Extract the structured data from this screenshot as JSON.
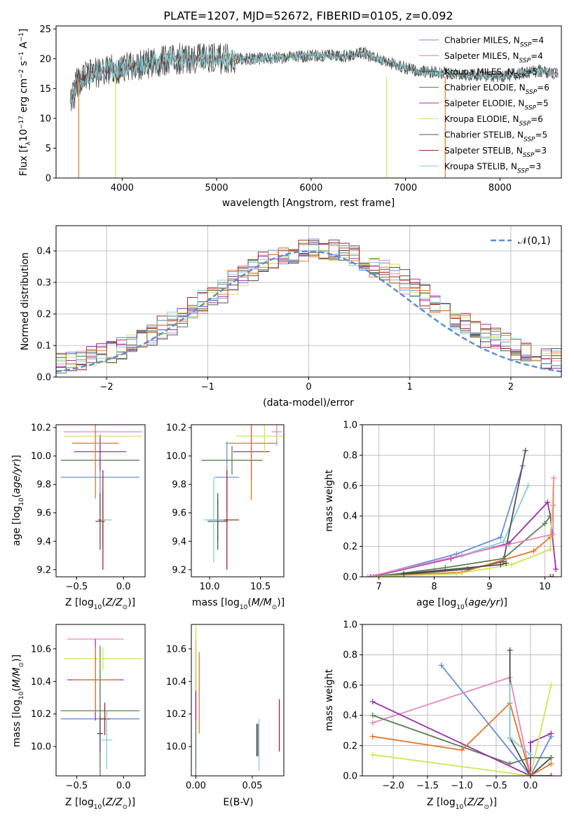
{
  "colors": {
    "series": [
      "#6a8fdb",
      "#e887bf",
      "#4a4a4a",
      "#5b7f55",
      "#9b2fae",
      "#cfe556",
      "#545454",
      "#a3282a",
      "#84d0d6"
    ],
    "orange": "#e0782a",
    "gaussian": "#5b8ed6",
    "grid": "#b0b0b0"
  },
  "chart_data": [
    {
      "id": "spectrum",
      "type": "line",
      "title": "PLATE=1207, MJD=52672, FIBERID=0105, z=0.092",
      "xlabel": "wavelength [Angstrom, rest frame]",
      "ylabel": "Flux [f_λ 10^-17 erg cm^-2 s^-1 A^-1]",
      "xlim": [
        3300,
        8650
      ],
      "ylim": [
        0,
        25.5
      ],
      "xticks": [
        4000,
        5000,
        6000,
        7000,
        8000
      ],
      "yticks": [
        0,
        5,
        10,
        15,
        20,
        25
      ],
      "grid": false,
      "legend_position": "top-right",
      "series": [
        {
          "name": "Chabrier MILES, N_SSP=4",
          "color": "#6a8fdb"
        },
        {
          "name": "Salpeter MILES, N_SSP=4",
          "color": "#e887bf"
        },
        {
          "name": "Kroupa MILES, N_SSP=5",
          "color": "#4a4a4a"
        },
        {
          "name": "Chabrier ELODIE, N_SSP=6",
          "color": "#5b7f55"
        },
        {
          "name": "Salpeter ELODIE, N_SSP=5",
          "color": "#9b2fae"
        },
        {
          "name": "Kroupa ELODIE, N_SSP=6",
          "color": "#cfe556"
        },
        {
          "name": "Chabrier STELIB, N_SSP=5",
          "color": "#545454"
        },
        {
          "name": "Salpeter STELIB, N_SSP=3",
          "color": "#a3282a"
        },
        {
          "name": "Kroupa STELIB, N_SSP=3",
          "color": "#84d0d6"
        }
      ],
      "continuum": {
        "x": [
          3450,
          3600,
          3800,
          4000,
          4200,
          4400,
          4600,
          5000,
          5500,
          6000,
          6400,
          6550,
          6700,
          6900,
          7100,
          7500,
          8000,
          8400,
          8600
        ],
        "y": [
          15,
          17,
          18,
          18.5,
          19,
          19.5,
          20,
          20,
          20,
          20.5,
          20.5,
          21,
          20,
          19,
          18,
          17.5,
          17,
          18,
          17.5
        ]
      }
    },
    {
      "id": "residuals",
      "type": "line",
      "xlabel": "(data-model)/error",
      "ylabel": "Normed distribution",
      "xlim": [
        -2.5,
        2.5
      ],
      "ylim": [
        0,
        0.48
      ],
      "xticks": [
        -2,
        -1,
        0,
        1,
        2
      ],
      "yticks": [
        0.0,
        0.1,
        0.2,
        0.3,
        0.4
      ],
      "grid": true,
      "legend": [
        "𝒩(0,1)"
      ],
      "legend_position": "top-right",
      "histogram_bin_width": 0.1
    },
    {
      "id": "age-vs-Z",
      "type": "scatter",
      "xlabel": "Z [log10(Z/Z☉)]",
      "ylabel": "age [log10(age/yr)]",
      "xlim": [
        -0.72,
        0.23
      ],
      "ylim": [
        9.15,
        10.22
      ],
      "xticks": [
        -0.5,
        0.0
      ],
      "yticks": [
        9.2,
        9.4,
        9.6,
        9.8,
        10.0,
        10.2
      ],
      "grid": false,
      "points": [
        {
          "x": -0.25,
          "y": 9.85,
          "xerr": 0.42,
          "yerr": 0.25,
          "color": "#6a8fdb"
        },
        {
          "x": -0.22,
          "y": 10.17,
          "xerr": 0.42,
          "yerr": 0.0,
          "color": "#e887bf"
        },
        {
          "x": -0.22,
          "y": 9.55,
          "xerr": 0.0,
          "yerr": 0.2,
          "color": "#4a4a4a"
        },
        {
          "x": -0.25,
          "y": 9.97,
          "xerr": 0.42,
          "yerr": 0.08,
          "color": "#5b7f55"
        },
        {
          "x": -0.25,
          "y": 10.03,
          "xerr": 0.28,
          "yerr": 0.12,
          "color": "#9b2fae"
        },
        {
          "x": -0.22,
          "y": 10.14,
          "xerr": 0.42,
          "yerr": 0.0,
          "color": "#cfe556"
        },
        {
          "x": -0.25,
          "y": 9.54,
          "xerr": 0.05,
          "yerr": 0.2,
          "color": "#545454"
        },
        {
          "x": -0.22,
          "y": 9.55,
          "xerr": 0.05,
          "yerr": 0.35,
          "color": "#a3282a"
        },
        {
          "x": -0.18,
          "y": 9.55,
          "xerr": 0.06,
          "yerr": 0.0,
          "color": "#84d0d6"
        },
        {
          "x": -0.3,
          "y": 10.09,
          "xerr": 0.25,
          "yerr": 0.39,
          "color": "#e0782a"
        }
      ]
    },
    {
      "id": "age-vs-mass",
      "type": "scatter",
      "xlabel": "mass [log10(M/M☉)]",
      "ylabel": "",
      "xlim": [
        9.82,
        10.73
      ],
      "ylim": [
        9.15,
        10.22
      ],
      "xticks": [
        10.0,
        10.5
      ],
      "yticks": [
        9.2,
        9.4,
        9.6,
        9.8,
        10.0,
        10.2
      ],
      "grid": false,
      "points": [
        {
          "x": 10.17,
          "y": 9.85,
          "xerr": 0.12,
          "yerr": 0.25,
          "color": "#6a8fdb"
        },
        {
          "x": 10.66,
          "y": 10.17,
          "xerr": 0.05,
          "yerr": 0.1,
          "color": "#e887bf"
        },
        {
          "x": 10.08,
          "y": 9.55,
          "xerr": 0.1,
          "yerr": 0.15,
          "color": "#4a4a4a"
        },
        {
          "x": 10.22,
          "y": 9.97,
          "xerr": 0.3,
          "yerr": 0.1,
          "color": "#5b7f55"
        },
        {
          "x": 10.41,
          "y": 10.03,
          "xerr": 0.18,
          "yerr": 0.2,
          "color": "#9b2fae"
        },
        {
          "x": 10.54,
          "y": 10.14,
          "xerr": 0.28,
          "yerr": 0.12,
          "color": "#cfe556"
        },
        {
          "x": 10.08,
          "y": 9.54,
          "xerr": 0.1,
          "yerr": 0.2,
          "color": "#545454"
        },
        {
          "x": 10.17,
          "y": 9.55,
          "xerr": 0.12,
          "yerr": 0.35,
          "color": "#a3282a"
        },
        {
          "x": 10.04,
          "y": 9.55,
          "xerr": 0.1,
          "yerr": 0.3,
          "color": "#84d0d6"
        },
        {
          "x": 10.41,
          "y": 10.09,
          "xerr": 0.25,
          "yerr": 0.4,
          "color": "#e0782a"
        }
      ]
    },
    {
      "id": "weight-vs-age",
      "type": "line",
      "xlabel": "age [log10(age/yr)]",
      "ylabel": "mass weight",
      "xlim": [
        6.7,
        10.3
      ],
      "ylim": [
        0,
        1.0
      ],
      "xticks": [
        7,
        8,
        9,
        10
      ],
      "yticks": [
        0.0,
        0.2,
        0.4,
        0.6,
        0.8,
        1.0
      ],
      "grid": true,
      "series": [
        {
          "color": "#6a8fdb",
          "x": [
            6.85,
            8.4,
            9.2,
            9.6
          ],
          "y": [
            0.0,
            0.15,
            0.26,
            0.73
          ]
        },
        {
          "color": "#84d0d6",
          "x": [
            6.9,
            8.5,
            9.25,
            9.7
          ],
          "y": [
            0.0,
            0.14,
            0.23,
            0.6
          ]
        },
        {
          "color": "#545454",
          "x": [
            6.95,
            8.6,
            9.25,
            9.65
          ],
          "y": [
            0.0,
            0.05,
            0.1,
            0.83
          ]
        },
        {
          "color": "#9b2fae",
          "x": [
            6.85,
            8.3,
            9.35,
            10.05,
            10.1,
            10.2
          ],
          "y": [
            0.0,
            0.12,
            0.22,
            0.49,
            0.4,
            0.05
          ]
        },
        {
          "color": "#5b7f55",
          "x": [
            6.9,
            8.2,
            9.25,
            10.0,
            10.1
          ],
          "y": [
            0.0,
            0.06,
            0.12,
            0.35,
            0.4
          ]
        },
        {
          "color": "#e0782a",
          "x": [
            6.9,
            8.5,
            9.8,
            10.1,
            10.15
          ],
          "y": [
            0.0,
            0.03,
            0.17,
            0.26,
            0.47
          ]
        },
        {
          "color": "#cfe556",
          "x": [
            6.8,
            8.4,
            9.4,
            10.1,
            10.15
          ],
          "y": [
            0.0,
            0.02,
            0.08,
            0.18,
            0.6
          ]
        },
        {
          "color": "#e887bf",
          "x": [
            6.8,
            10.15,
            10.16
          ],
          "y": [
            0.0,
            0.28,
            0.65
          ]
        },
        {
          "color": "#4a4a4a",
          "x": [
            7.45,
            9.2,
            9.3
          ],
          "y": [
            0.02,
            0.08,
            0.09
          ]
        },
        {
          "color": "#a3282a",
          "x": [
            10.1,
            10.15
          ],
          "y": [
            0.0,
            0.0
          ]
        }
      ]
    },
    {
      "id": "mass-vs-Z",
      "type": "scatter",
      "xlabel": "Z [log10(Z/Z☉)]",
      "ylabel": "mass [log10(M/M☉)]",
      "xlim": [
        -0.72,
        0.23
      ],
      "ylim": [
        9.82,
        10.75
      ],
      "xticks": [
        -0.5,
        0.0
      ],
      "yticks": [
        10.0,
        10.2,
        10.4,
        10.6
      ],
      "grid": false,
      "points": [
        {
          "x": -0.25,
          "y": 10.17,
          "xerr": 0.42,
          "yerr": 0.3,
          "color": "#6a8fdb"
        },
        {
          "x": -0.3,
          "y": 10.66,
          "xerr": 0.3,
          "yerr": 0.0,
          "color": "#e887bf"
        },
        {
          "x": -0.25,
          "y": 10.08,
          "xerr": 0.03,
          "yerr": 0.1,
          "color": "#4a4a4a"
        },
        {
          "x": -0.25,
          "y": 10.22,
          "xerr": 0.42,
          "yerr": 0.4,
          "color": "#5b7f55"
        },
        {
          "x": -0.3,
          "y": 10.41,
          "xerr": 0.3,
          "yerr": 0.25,
          "color": "#9b2fae"
        },
        {
          "x": -0.22,
          "y": 10.54,
          "xerr": 0.42,
          "yerr": 0.07,
          "color": "#cfe556"
        },
        {
          "x": -0.25,
          "y": 10.08,
          "xerr": 0.03,
          "yerr": 0.11,
          "color": "#545454"
        },
        {
          "x": -0.2,
          "y": 10.17,
          "xerr": 0.05,
          "yerr": 0.1,
          "color": "#a3282a"
        },
        {
          "x": -0.18,
          "y": 10.04,
          "xerr": 0.06,
          "yerr": 0.18,
          "color": "#84d0d6"
        },
        {
          "x": -0.3,
          "y": 10.41,
          "xerr": 0.25,
          "yerr": 0.2,
          "color": "#e0782a"
        }
      ]
    },
    {
      "id": "mass-vs-EBV",
      "type": "scatter",
      "xlabel": "E(B-V)",
      "ylabel": "",
      "xlim": [
        -0.004,
        0.078
      ],
      "ylim": [
        9.82,
        10.75
      ],
      "xticks": [
        0.0,
        0.05
      ],
      "yticks": [
        10.0,
        10.2,
        10.4,
        10.6
      ],
      "grid": false,
      "points": [
        {
          "x": 0.0,
          "y": 10.17,
          "yerr": 0.3,
          "color": "#6a8fdb"
        },
        {
          "x": 0.0,
          "y": 10.66,
          "yerr": 0.05,
          "color": "#e887bf"
        },
        {
          "x": 0.054,
          "y": 10.04,
          "yerr": 0.1,
          "color": "#4a4a4a"
        },
        {
          "x": 0.0,
          "y": 10.22,
          "yerr": 0.4,
          "color": "#5b7f55"
        },
        {
          "x": 0.0,
          "y": 10.41,
          "yerr": 0.25,
          "color": "#9b2fae"
        },
        {
          "x": 0.0,
          "y": 10.54,
          "yerr": 0.2,
          "color": "#cfe556"
        },
        {
          "x": 0.055,
          "y": 10.04,
          "yerr": 0.1,
          "color": "#545454"
        },
        {
          "x": 0.074,
          "y": 10.13,
          "yerr": 0.16,
          "color": "#a3282a"
        },
        {
          "x": 0.056,
          "y": 10.01,
          "yerr": 0.16,
          "color": "#84d0d6"
        },
        {
          "x": 0.003,
          "y": 10.33,
          "yerr": 0.25,
          "color": "#e0782a"
        }
      ]
    },
    {
      "id": "weight-vs-Z",
      "type": "line",
      "xlabel": "Z [log10(Z/Z☉)]",
      "ylabel": "mass weight",
      "xlim": [
        -2.45,
        0.45
      ],
      "ylim": [
        0,
        1.0
      ],
      "xticks": [
        -2.0,
        -1.5,
        -1.0,
        -0.5,
        0.0
      ],
      "yticks": [
        0.0,
        0.2,
        0.4,
        0.6,
        0.8,
        1.0
      ],
      "grid": true,
      "series": [
        {
          "color": "#6a8fdb",
          "x": [
            -1.3,
            0.0,
            0.3
          ],
          "y": [
            0.73,
            0.0,
            0.26
          ]
        },
        {
          "color": "#e887bf",
          "x": [
            -2.3,
            -0.3,
            0.0,
            0.3
          ],
          "y": [
            0.35,
            0.65,
            0.0,
            0.0
          ]
        },
        {
          "color": "#4a4a4a",
          "x": [
            -0.3,
            -0.3,
            0.0,
            0.3
          ],
          "y": [
            0.83,
            0.25,
            0.0,
            0.12
          ]
        },
        {
          "color": "#5b7f55",
          "x": [
            -2.3,
            -0.3,
            0.0,
            0.3
          ],
          "y": [
            0.4,
            0.08,
            0.12,
            0.12
          ]
        },
        {
          "color": "#9b2fae",
          "x": [
            -2.3,
            0.0,
            0.0,
            0.3
          ],
          "y": [
            0.49,
            0.0,
            0.22,
            0.28
          ]
        },
        {
          "color": "#e0782a",
          "x": [
            -2.3,
            -1.0,
            -0.3,
            0.0,
            0.3
          ],
          "y": [
            0.26,
            0.17,
            0.48,
            0.0,
            0.08
          ]
        },
        {
          "color": "#cfe556",
          "x": [
            -2.3,
            0.0,
            0.3
          ],
          "y": [
            0.14,
            0.0,
            0.6
          ]
        },
        {
          "color": "#84d0d6",
          "x": [
            -0.3,
            -0.3,
            0.0
          ],
          "y": [
            0.6,
            0.25,
            0.14
          ]
        },
        {
          "color": "#a3282a",
          "x": [
            0.0,
            0.3
          ],
          "y": [
            0.0,
            0.0
          ]
        }
      ]
    }
  ]
}
